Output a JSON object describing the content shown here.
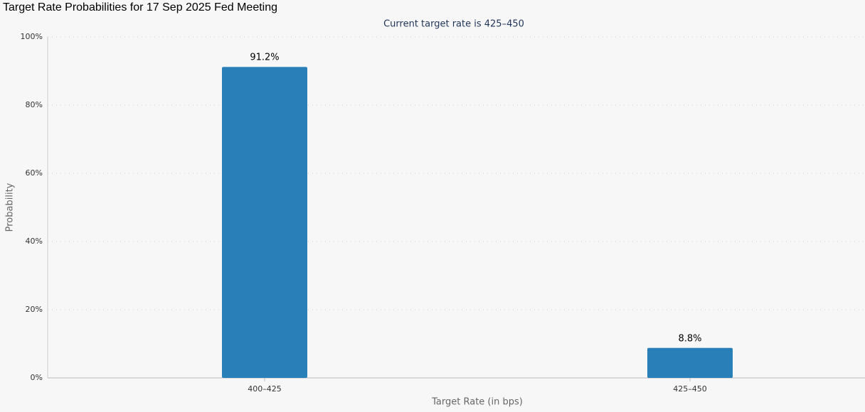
{
  "chart_data": {
    "type": "bar",
    "title": "Target Rate Probabilities for 17 Sep 2025 Fed Meeting",
    "subtitle": "Current target rate is 425–450",
    "x_label": "Target Rate (in bps)",
    "y_label": "Probability",
    "categories": [
      "400–425",
      "425–450"
    ],
    "values": [
      91.2,
      8.8
    ],
    "value_labels": [
      "91.2%",
      "8.8%"
    ],
    "color": "#2980b9",
    "ylim": [
      0,
      100
    ],
    "yticks": [
      {
        "value": 0,
        "label": "0%"
      },
      {
        "value": 20,
        "label": "20%"
      },
      {
        "value": 40,
        "label": "40%"
      },
      {
        "value": 60,
        "label": "60%"
      },
      {
        "value": 80,
        "label": "80%"
      },
      {
        "value": 100,
        "label": "100%"
      }
    ],
    "grid": true
  }
}
